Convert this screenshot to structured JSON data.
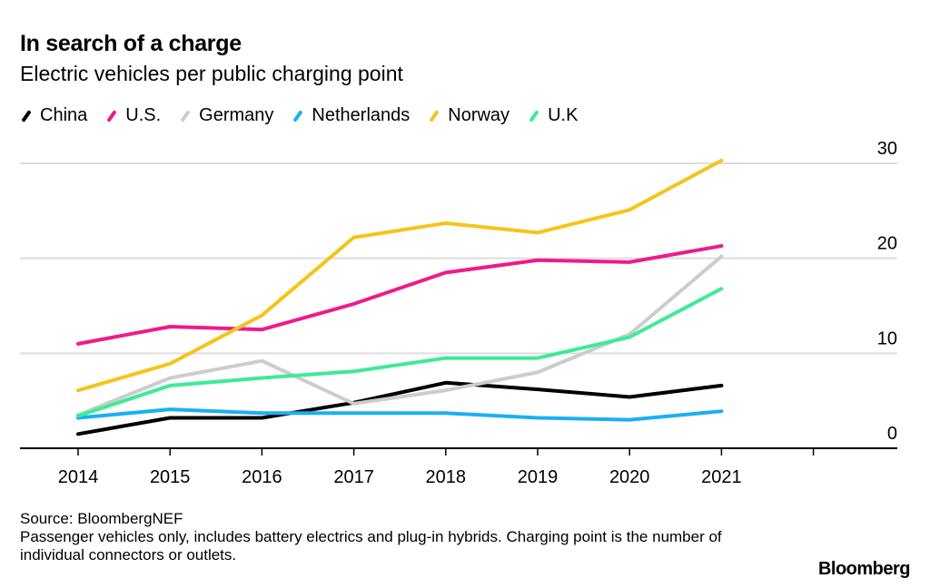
{
  "chart_data": {
    "type": "line",
    "title": "In search of a charge",
    "subtitle": "Electric vehicles per public charging point",
    "x": [
      "2014",
      "2015",
      "2016",
      "2017",
      "2018",
      "2019",
      "2020",
      "2021"
    ],
    "ylim": [
      0,
      30
    ],
    "yticks": [
      "0",
      "10",
      "20",
      "30"
    ],
    "y_axis_side": "right",
    "grid": true,
    "legend_placement": "top-left",
    "series": [
      {
        "name": "China",
        "color": "#000000",
        "values": [
          1.5,
          3.2,
          3.2,
          4.8,
          6.9,
          6.2,
          5.4,
          6.6
        ]
      },
      {
        "name": "U.S.",
        "color": "#ef1a8c",
        "values": [
          11.0,
          12.8,
          12.5,
          15.2,
          18.5,
          19.8,
          19.6,
          21.3
        ]
      },
      {
        "name": "Germany",
        "color": "#cccccc",
        "values": [
          3.5,
          7.4,
          9.2,
          4.7,
          6.1,
          8.0,
          12.0,
          20.2
        ]
      },
      {
        "name": "Netherlands",
        "color": "#1ab0f2",
        "values": [
          3.2,
          4.1,
          3.7,
          3.7,
          3.7,
          3.2,
          3.0,
          3.9
        ]
      },
      {
        "name": "Norway",
        "color": "#f5c419",
        "values": [
          6.1,
          8.9,
          14.0,
          22.2,
          23.7,
          22.7,
          25.1,
          30.3
        ]
      },
      {
        "name": "U.K",
        "color": "#3deb95",
        "values": [
          3.4,
          6.6,
          7.4,
          8.1,
          9.5,
          9.5,
          11.7,
          16.8
        ]
      }
    ]
  },
  "footer": {
    "source": "Source: BloombergNEF",
    "note": "Passenger vehicles only, includes battery electrics and plug-in hybrids. Charging point is the number of individual connectors or outlets."
  },
  "brand": "Bloomberg"
}
